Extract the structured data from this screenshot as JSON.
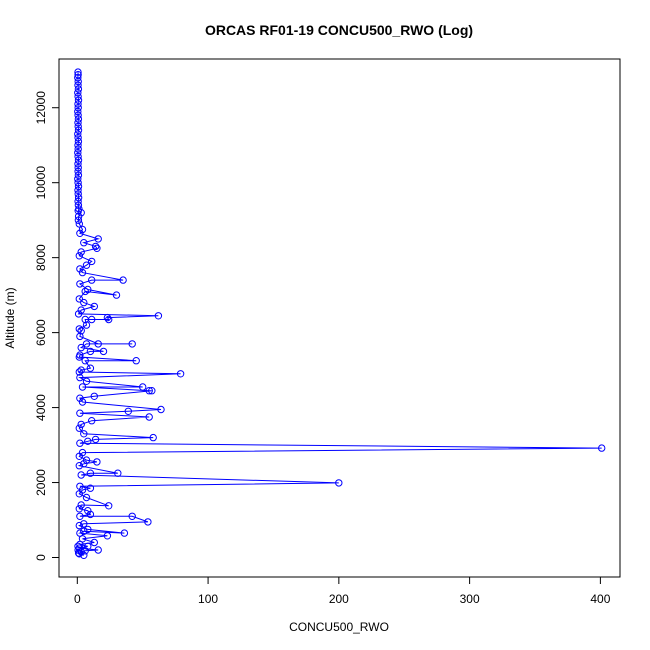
{
  "chart_data": {
    "type": "line",
    "title": "ORCAS RF01-19 CONCU500_RWO (Log)",
    "xlabel": "CONCU500_RWO",
    "ylabel": "Altitude (m)",
    "xlim": [
      -14,
      415
    ],
    "ylim": [
      -520,
      13300
    ],
    "x_ticks": [
      0,
      100,
      200,
      300,
      400
    ],
    "y_ticks": [
      0,
      2000,
      4000,
      6000,
      8000,
      10000,
      12000
    ],
    "grid": false,
    "legend": "none",
    "series_color": "#0000ff",
    "marker": "open-circle",
    "series": [
      {
        "points": [
          [
            0.5,
            12950
          ],
          [
            0.6,
            12880
          ],
          [
            0.4,
            12800
          ],
          [
            0.7,
            12700
          ],
          [
            0.5,
            12600
          ],
          [
            0.8,
            12500
          ],
          [
            0.4,
            12400
          ],
          [
            0.6,
            12300
          ],
          [
            0.9,
            12200
          ],
          [
            0.5,
            12100
          ],
          [
            0.7,
            12000
          ],
          [
            0.4,
            11900
          ],
          [
            0.6,
            11800
          ],
          [
            0.8,
            11700
          ],
          [
            0.5,
            11600
          ],
          [
            0.7,
            11500
          ],
          [
            0.9,
            11400
          ],
          [
            0.4,
            11300
          ],
          [
            0.6,
            11200
          ],
          [
            0.8,
            11100
          ],
          [
            0.5,
            11000
          ],
          [
            0.7,
            10900
          ],
          [
            0.4,
            10800
          ],
          [
            0.6,
            10700
          ],
          [
            0.9,
            10600
          ],
          [
            0.5,
            10500
          ],
          [
            0.7,
            10400
          ],
          [
            0.6,
            10300
          ],
          [
            0.8,
            10200
          ],
          [
            0.4,
            10100
          ],
          [
            0.6,
            10000
          ],
          [
            0.9,
            9900
          ],
          [
            0.5,
            9800
          ],
          [
            0.7,
            9700
          ],
          [
            1.0,
            9600
          ],
          [
            0.6,
            9500
          ],
          [
            0.8,
            9400
          ],
          [
            1.2,
            9300
          ],
          [
            0.7,
            9250
          ],
          [
            3,
            9200
          ],
          [
            1.0,
            9100
          ],
          [
            0.8,
            9000
          ],
          [
            1.5,
            8900
          ],
          [
            4,
            8750
          ],
          [
            2,
            8650
          ],
          [
            16,
            8500
          ],
          [
            5,
            8400
          ],
          [
            14,
            8300
          ],
          [
            15,
            8250
          ],
          [
            3,
            8150
          ],
          [
            1.5,
            8050
          ],
          [
            11,
            7900
          ],
          [
            7,
            7800
          ],
          [
            2,
            7700
          ],
          [
            4,
            7600
          ],
          [
            35,
            7400
          ],
          [
            11,
            7400
          ],
          [
            2,
            7300
          ],
          [
            8,
            7150
          ],
          [
            30,
            7000
          ],
          [
            6,
            7100
          ],
          [
            1.5,
            6900
          ],
          [
            5,
            6800
          ],
          [
            13,
            6700
          ],
          [
            3,
            6600
          ],
          [
            1,
            6500
          ],
          [
            62,
            6450
          ],
          [
            23,
            6400
          ],
          [
            24,
            6350
          ],
          [
            11,
            6350
          ],
          [
            6,
            6350
          ],
          [
            7,
            6200
          ],
          [
            1.5,
            6100
          ],
          [
            3,
            6050
          ],
          [
            2,
            5900
          ],
          [
            16,
            5700
          ],
          [
            42,
            5700
          ],
          [
            7,
            5700
          ],
          [
            3,
            5600
          ],
          [
            20,
            5500
          ],
          [
            10,
            5500
          ],
          [
            2,
            5400
          ],
          [
            1.5,
            5350
          ],
          [
            45,
            5250
          ],
          [
            6,
            5250
          ],
          [
            10,
            5050
          ],
          [
            3,
            5000
          ],
          [
            1.5,
            4950
          ],
          [
            79,
            4900
          ],
          [
            2,
            4800
          ],
          [
            7,
            4700
          ],
          [
            50,
            4550
          ],
          [
            4,
            4550
          ],
          [
            55,
            4450
          ],
          [
            57,
            4450
          ],
          [
            13,
            4300
          ],
          [
            2,
            4250
          ],
          [
            4,
            4150
          ],
          [
            64,
            3950
          ],
          [
            39,
            3900
          ],
          [
            2,
            3850
          ],
          [
            55,
            3750
          ],
          [
            11,
            3650
          ],
          [
            3,
            3550
          ],
          [
            1.5,
            3450
          ],
          [
            5,
            3300
          ],
          [
            58,
            3200
          ],
          [
            14,
            3150
          ],
          [
            8,
            3100
          ],
          [
            2,
            3050
          ],
          [
            401,
            2920
          ],
          [
            4,
            2800
          ],
          [
            1.5,
            2700
          ],
          [
            7,
            2600
          ],
          [
            15,
            2550
          ],
          [
            5,
            2500
          ],
          [
            1.5,
            2450
          ],
          [
            31,
            2250
          ],
          [
            10,
            2250
          ],
          [
            3,
            2200
          ],
          [
            200,
            1990
          ],
          [
            2,
            1900
          ],
          [
            10,
            1850
          ],
          [
            4,
            1800
          ],
          [
            1.5,
            1700
          ],
          [
            7,
            1600
          ],
          [
            24,
            1380
          ],
          [
            3,
            1400
          ],
          [
            1.5,
            1300
          ],
          [
            8,
            1250
          ],
          [
            10,
            1150
          ],
          [
            2,
            1100
          ],
          [
            42,
            1100
          ],
          [
            54,
            950
          ],
          [
            5,
            900
          ],
          [
            1.5,
            850
          ],
          [
            8,
            750
          ],
          [
            36,
            650
          ],
          [
            5,
            700
          ],
          [
            2,
            650
          ],
          [
            23,
            580
          ],
          [
            4,
            500
          ],
          [
            13,
            400
          ],
          [
            2,
            350
          ],
          [
            8,
            300
          ],
          [
            1.5,
            250
          ],
          [
            16,
            200
          ],
          [
            6,
            180
          ],
          [
            3,
            150
          ],
          [
            1.5,
            100
          ],
          [
            5,
            60
          ],
          [
            1,
            120
          ],
          [
            0.6,
            200
          ],
          [
            0.5,
            300
          ]
        ]
      }
    ]
  }
}
